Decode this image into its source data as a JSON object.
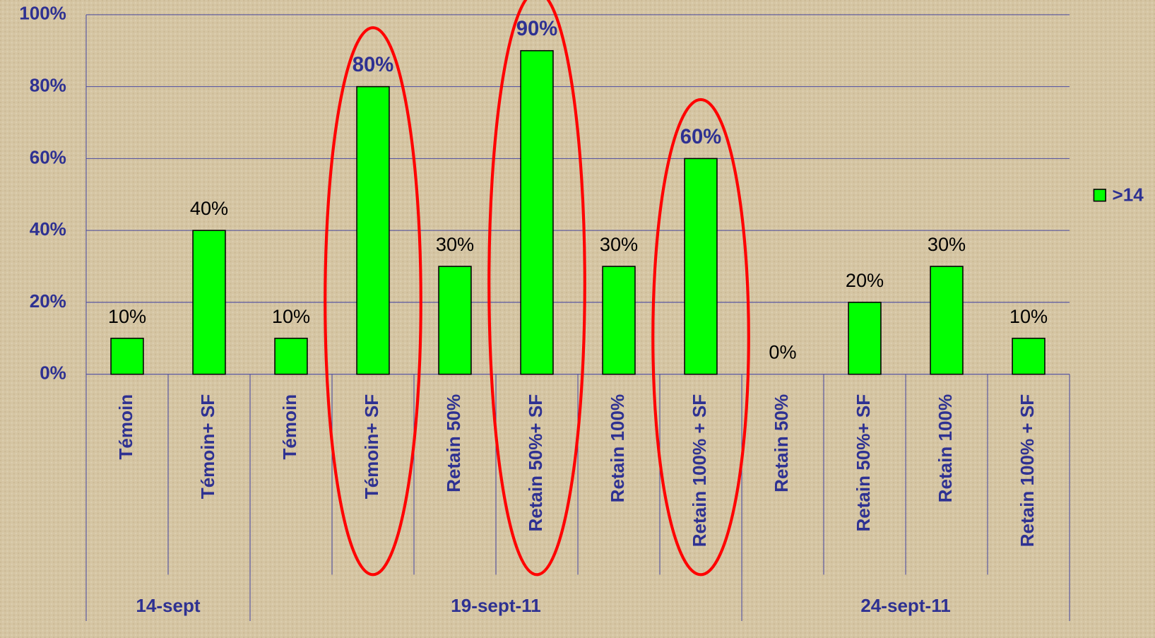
{
  "chart_data": {
    "type": "bar",
    "categories": [
      "Témoin",
      "Témoin+ SF",
      "Témoin",
      "Témoin+ SF",
      "Retain 50%",
      "Retain 50%+ SF",
      "Retain 100%",
      "Retain 100% + SF",
      "Retain 50%",
      "Retain 50%+ SF",
      "Retain 100%",
      "Retain 100% + SF"
    ],
    "groups": [
      {
        "label": "14-sept",
        "span": 2
      },
      {
        "label": "19-sept-11",
        "span": 6
      },
      {
        "label": "24-sept-11",
        "span": 4
      }
    ],
    "series": [
      {
        "name": ">14",
        "color": "#00ff00",
        "values": [
          10,
          40,
          10,
          80,
          30,
          90,
          30,
          60,
          0,
          20,
          30,
          10
        ],
        "value_labels": [
          "10%",
          "40%",
          "10%",
          "80%",
          "30%",
          "90%",
          "30%",
          "60%",
          "0%",
          "20%",
          "30%",
          "10%"
        ]
      }
    ],
    "highlight": [
      3,
      5,
      7
    ],
    "highlight_color": "#ff0000",
    "ylim": [
      0,
      100
    ],
    "yticks": [
      {
        "value": 0,
        "label": "0%"
      },
      {
        "value": 20,
        "label": "20%"
      },
      {
        "value": 40,
        "label": "40%"
      },
      {
        "value": 60,
        "label": "60%"
      },
      {
        "value": 80,
        "label": "80%"
      },
      {
        "value": 100,
        "label": "100%"
      }
    ],
    "grid": true,
    "legend": "right"
  }
}
